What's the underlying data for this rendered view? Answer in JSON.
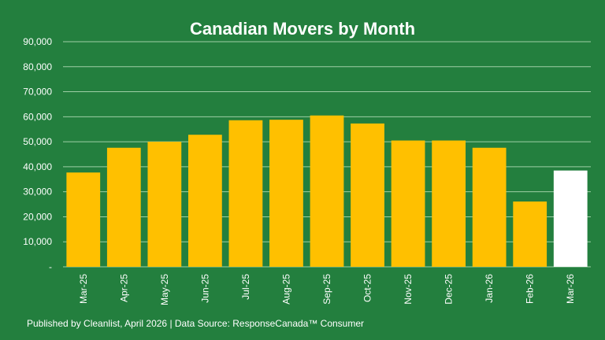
{
  "chart_data": {
    "type": "bar",
    "title": "Canadian Movers by Month",
    "xlabel": "",
    "ylabel": "",
    "ylim": [
      0,
      90000
    ],
    "yticks": [
      0,
      10000,
      20000,
      30000,
      40000,
      50000,
      60000,
      70000,
      80000,
      90000
    ],
    "ytick_labels": [
      "-",
      "10,000",
      "20,000",
      "30,000",
      "40,000",
      "50,000",
      "60,000",
      "70,000",
      "80,000",
      "90,000"
    ],
    "grid": true,
    "categories": [
      "Mar-25",
      "Apr-25",
      "May-25",
      "Jun-25",
      "Jul-25",
      "Aug-25",
      "Sep-25",
      "Oct-25",
      "Nov-25",
      "Dec-25",
      "Jan-26",
      "Feb-26",
      "Mar-26"
    ],
    "values": [
      37700,
      47600,
      50000,
      52800,
      58600,
      58800,
      60500,
      57300,
      50500,
      50500,
      47600,
      26100,
      38500
    ],
    "colors": {
      "bar": "#ffc000",
      "highlight": "#ffffff",
      "background": "#237f3e",
      "grid": "#9fcfa6"
    },
    "highlight_index": 12
  },
  "footer": "Published by Cleanlist, April 2026 | Data Source: ResponseCanada™ Consumer"
}
